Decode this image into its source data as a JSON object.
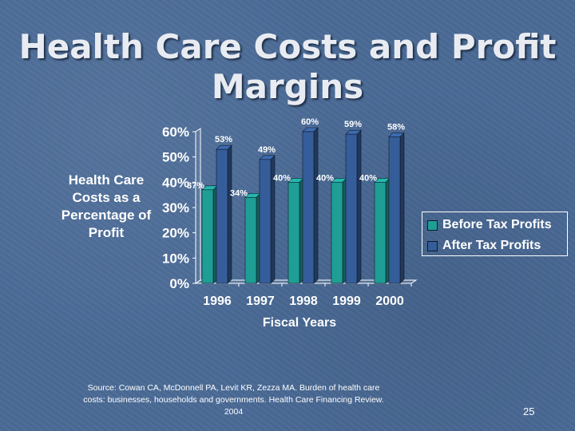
{
  "slide": {
    "title": "Health Care Costs and Profit Margins",
    "source": "Source: Cowan CA, McDonnell PA, Levit KR, Zezza MA. Burden of health care costs: businesses, households and governments. Health Care Financing Review. 2004",
    "page_number": "25"
  },
  "colors": {
    "before_tax": "#1f9e95",
    "after_tax": "#355d99"
  },
  "chart_data": {
    "type": "bar",
    "title": "",
    "xlabel": "Fiscal Years",
    "ylabel": "Health Care Costs as a Percentage of Profit",
    "categories": [
      "1996",
      "1997",
      "1998",
      "1999",
      "2000"
    ],
    "series": [
      {
        "name": "Before Tax Profits",
        "values": [
          37,
          34,
          40,
          40,
          40
        ],
        "labels": [
          "37%",
          "34%",
          "40%",
          "40%",
          "40%"
        ]
      },
      {
        "name": "After Tax Profits",
        "values": [
          53,
          49,
          60,
          59,
          58
        ],
        "labels": [
          "53%",
          "49%",
          "60%",
          "59%",
          "58%"
        ]
      }
    ],
    "ylim": [
      0,
      60
    ],
    "yticks": [
      "0%",
      "10%",
      "20%",
      "30%",
      "40%",
      "50%",
      "60%"
    ],
    "legend": "right",
    "grid": false
  }
}
